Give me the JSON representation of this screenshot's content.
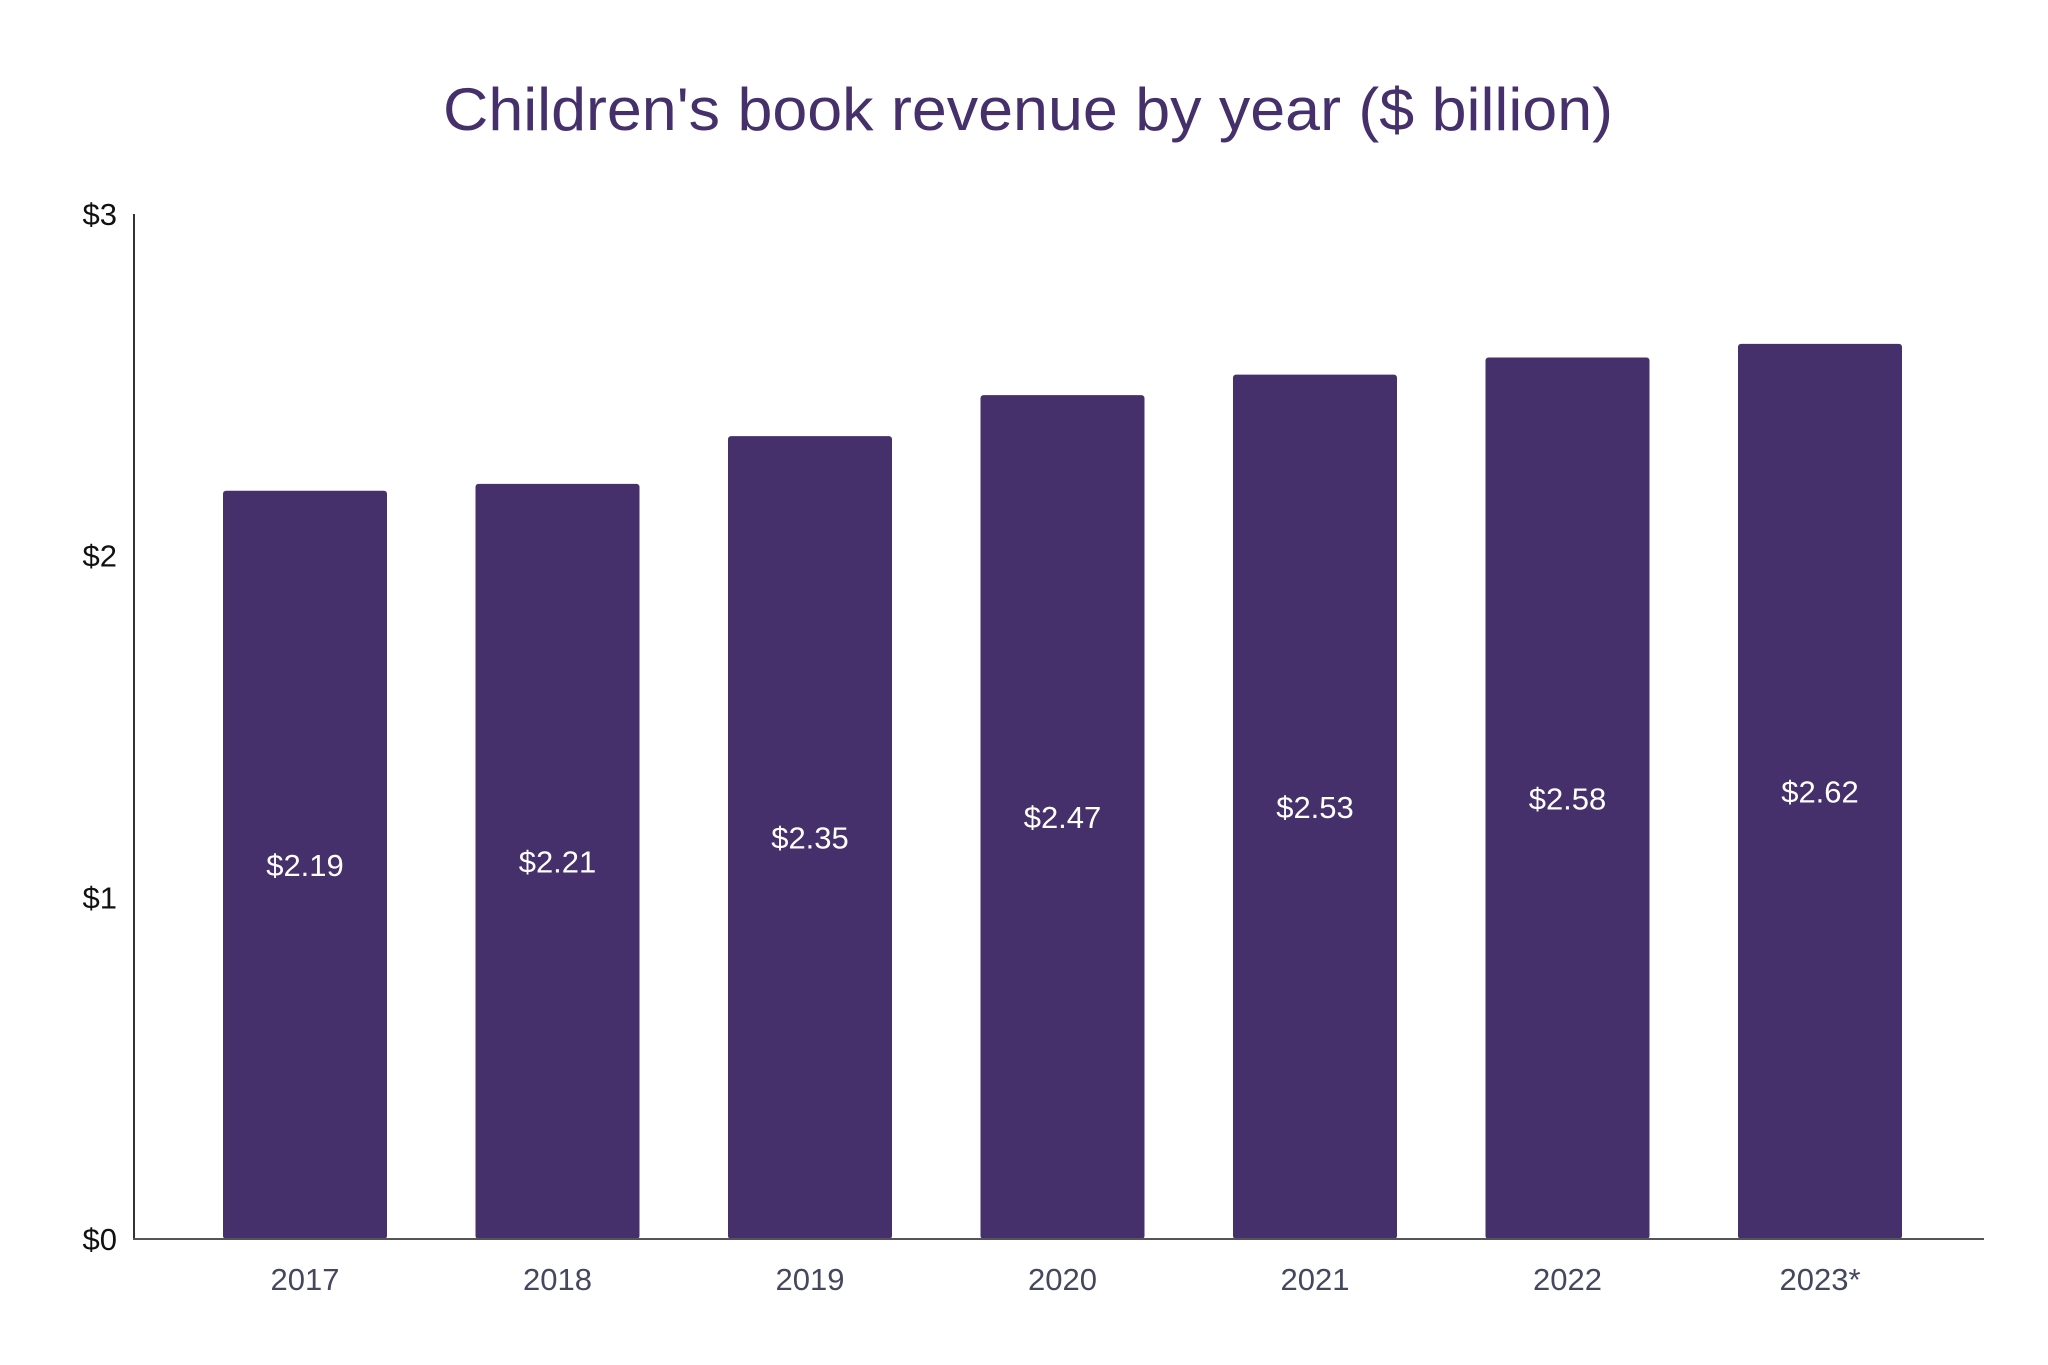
{
  "chart_data": {
    "type": "bar",
    "title": "Children's book revenue by year ($ billion)",
    "xlabel": "",
    "ylabel": "",
    "categories": [
      "2017",
      "2018",
      "2019",
      "2020",
      "2021",
      "2022",
      "2023*"
    ],
    "values": [
      2.19,
      2.21,
      2.35,
      2.47,
      2.53,
      2.58,
      2.62
    ],
    "data_labels": [
      "$2.19",
      "$2.21",
      "$2.35",
      "$2.47",
      "$2.53",
      "$2.58",
      "$2.62"
    ],
    "ylim": [
      0,
      3
    ],
    "yticks": [
      0,
      1,
      2,
      3
    ],
    "ytick_labels": [
      "$0",
      "$1",
      "$2",
      "$3"
    ],
    "grid": false,
    "legend": "none",
    "colors": {
      "bar": "#45306b",
      "title": "#45306b",
      "axis": "#333333",
      "label": "#ffffff"
    }
  }
}
